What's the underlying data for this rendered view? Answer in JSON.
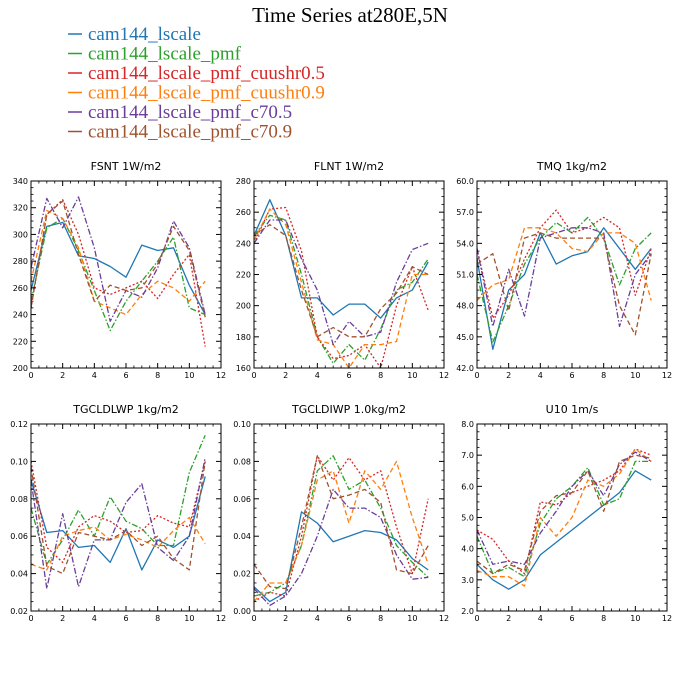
{
  "chart_data": {
    "title": "Time Series at280E,5N",
    "type": "line",
    "series_meta": [
      {
        "name": "cam144_lscale",
        "color": "#1f77b4",
        "dash": "solid"
      },
      {
        "name": "cam144_lscale_pmf",
        "color": "#2ca02c",
        "dash": "dashdot"
      },
      {
        "name": "cam144_lscale_pmf_cuushr0.5",
        "color": "#d62728",
        "dash": "dotted"
      },
      {
        "name": "cam144_lscale_pmf_cuushr0.9",
        "color": "#ff7f0e",
        "dash": "dashed"
      },
      {
        "name": "cam144_lscale_pmf_c70.5",
        "color": "#6a3d9a",
        "dash": "dashdot"
      },
      {
        "name": "cam144_lscale_pmf_c70.9",
        "color": "#a0522d",
        "dash": "dashed"
      }
    ],
    "panels": [
      {
        "title": "FSNT   1W/m2",
        "xlim": [
          0,
          12
        ],
        "xticks": [
          0,
          2,
          4,
          6,
          8,
          10,
          12
        ],
        "ylim": [
          200,
          340
        ],
        "yticks": [
          200,
          220,
          240,
          260,
          280,
          300,
          320,
          340
        ],
        "ytick_labels": [
          "200",
          "220",
          "240",
          "260",
          "280",
          "300",
          "320",
          "340"
        ],
        "series": [
          [
            258,
            306,
            309,
            284,
            282,
            276,
            268,
            292,
            288,
            290,
            262,
            240
          ],
          [
            250,
            305,
            312,
            288,
            258,
            228,
            250,
            265,
            280,
            298,
            245,
            240
          ],
          [
            245,
            315,
            326,
            300,
            260,
            255,
            260,
            265,
            252,
            270,
            285,
            216
          ],
          [
            265,
            318,
            312,
            290,
            250,
            245,
            240,
            255,
            265,
            260,
            250,
            265
          ],
          [
            275,
            327,
            305,
            328,
            290,
            235,
            258,
            253,
            275,
            310,
            290,
            240
          ],
          [
            245,
            315,
            325,
            285,
            250,
            262,
            258,
            260,
            278,
            306,
            288,
            238
          ]
        ]
      },
      {
        "title": "FLNT   1W/m2",
        "xlim": [
          0,
          12
        ],
        "xticks": [
          0,
          2,
          4,
          6,
          8,
          10,
          12
        ],
        "ylim": [
          160,
          280
        ],
        "yticks": [
          160,
          180,
          200,
          220,
          240,
          260,
          280
        ],
        "ytick_labels": [
          "160",
          "180",
          "200",
          "220",
          "240",
          "260",
          "280"
        ],
        "series": [
          [
            245,
            268,
            245,
            205,
            205,
            194,
            201,
            201,
            192,
            205,
            210,
            228
          ],
          [
            245,
            258,
            255,
            220,
            180,
            163,
            175,
            165,
            185,
            210,
            215,
            230
          ],
          [
            240,
            262,
            263,
            235,
            180,
            166,
            168,
            175,
            160,
            200,
            225,
            197
          ],
          [
            242,
            262,
            252,
            215,
            178,
            175,
            160,
            175,
            175,
            177,
            220,
            220
          ],
          [
            240,
            255,
            255,
            230,
            210,
            175,
            190,
            180,
            183,
            215,
            236,
            240
          ],
          [
            245,
            252,
            245,
            210,
            180,
            186,
            180,
            180,
            198,
            208,
            225,
            220
          ]
        ]
      },
      {
        "title": "TMQ   1kg/m2",
        "xlim": [
          0,
          12
        ],
        "xticks": [
          0,
          2,
          4,
          6,
          8,
          10,
          12
        ],
        "ylim": [
          42,
          60
        ],
        "yticks": [
          42,
          45,
          48,
          51,
          54,
          57,
          60
        ],
        "ytick_labels": [
          "42.0",
          "45.0",
          "48.0",
          "51.0",
          "54.0",
          "57.0",
          "60.0"
        ],
        "series": [
          [
            52.5,
            43.8,
            49.5,
            51.0,
            55.0,
            52.0,
            52.8,
            53.2,
            55.5,
            53.5,
            51.5,
            53.5
          ],
          [
            51.0,
            44.5,
            48.0,
            52.0,
            54.5,
            56.0,
            55.0,
            56.5,
            54.5,
            50.0,
            53.5,
            55.0
          ],
          [
            53.5,
            46.8,
            49.0,
            52.5,
            55.5,
            57.2,
            55.0,
            55.5,
            56.5,
            55.5,
            49.0,
            53.5
          ],
          [
            48.5,
            50.0,
            50.5,
            55.5,
            55.5,
            55.0,
            53.5,
            53.2,
            55.0,
            55.0,
            54.0,
            48.5
          ],
          [
            53.5,
            46.0,
            51.5,
            47.0,
            54.5,
            55.0,
            55.5,
            55.5,
            55.0,
            46.0,
            51.0,
            53.0
          ],
          [
            52.0,
            53.0,
            47.5,
            54.5,
            55.0,
            54.5,
            54.5,
            54.5,
            54.5,
            48.0,
            45.2,
            53.0
          ]
        ]
      },
      {
        "title": "TGCLDLWP   1kg/m2",
        "xlim": [
          0,
          12
        ],
        "xticks": [
          0,
          2,
          4,
          6,
          8,
          10,
          12
        ],
        "ylim": [
          0.02,
          0.12
        ],
        "yticks": [
          0.02,
          0.04,
          0.06,
          0.08,
          0.1,
          0.12
        ],
        "ytick_labels": [
          "0.02",
          "0.04",
          "0.06",
          "0.08",
          "0.10",
          "0.12"
        ],
        "series": [
          [
            0.09,
            0.062,
            0.063,
            0.054,
            0.055,
            0.046,
            0.064,
            0.042,
            0.058,
            0.054,
            0.06,
            0.092
          ],
          [
            0.075,
            0.045,
            0.058,
            0.074,
            0.06,
            0.081,
            0.068,
            0.064,
            0.055,
            0.055,
            0.094,
            0.114
          ],
          [
            0.1,
            0.054,
            0.046,
            0.065,
            0.071,
            0.068,
            0.062,
            0.063,
            0.071,
            0.067,
            0.065,
            0.1
          ],
          [
            0.045,
            0.042,
            0.06,
            0.063,
            0.065,
            0.058,
            0.061,
            0.058,
            0.054,
            0.063,
            0.07,
            0.056
          ],
          [
            0.09,
            0.032,
            0.072,
            0.033,
            0.058,
            0.058,
            0.078,
            0.088,
            0.054,
            0.047,
            0.06,
            0.102
          ],
          [
            0.097,
            0.044,
            0.04,
            0.062,
            0.06,
            0.058,
            0.063,
            0.055,
            0.06,
            0.048,
            0.042,
            0.1
          ]
        ]
      },
      {
        "title": "TGCLDIWP   1.0kg/m2",
        "xlim": [
          0,
          12
        ],
        "xticks": [
          0,
          2,
          4,
          6,
          8,
          10,
          12
        ],
        "ylim": [
          0,
          0.1
        ],
        "yticks": [
          0,
          0.02,
          0.04,
          0.06,
          0.08,
          0.1
        ],
        "ytick_labels": [
          "0.00",
          "0.02",
          "0.04",
          "0.06",
          "0.08",
          "0.10"
        ],
        "series": [
          [
            0.013,
            0.005,
            0.01,
            0.053,
            0.047,
            0.037,
            0.04,
            0.043,
            0.042,
            0.038,
            0.028,
            0.022
          ],
          [
            0.008,
            0.01,
            0.015,
            0.035,
            0.075,
            0.083,
            0.065,
            0.07,
            0.055,
            0.035,
            0.026,
            0.018
          ],
          [
            0.005,
            0.01,
            0.008,
            0.04,
            0.083,
            0.07,
            0.082,
            0.07,
            0.075,
            0.045,
            0.02,
            0.06
          ],
          [
            0.005,
            0.015,
            0.015,
            0.035,
            0.07,
            0.075,
            0.047,
            0.075,
            0.065,
            0.08,
            0.05,
            0.025
          ],
          [
            0.012,
            0.003,
            0.008,
            0.02,
            0.04,
            0.065,
            0.055,
            0.055,
            0.05,
            0.03,
            0.017,
            0.018
          ],
          [
            0.025,
            0.013,
            0.012,
            0.045,
            0.083,
            0.06,
            0.062,
            0.065,
            0.058,
            0.022,
            0.02,
            0.035
          ]
        ]
      },
      {
        "title": "U10   1m/s",
        "xlim": [
          0,
          12
        ],
        "xticks": [
          0,
          2,
          4,
          6,
          8,
          10,
          12
        ],
        "ylim": [
          2,
          8
        ],
        "yticks": [
          2,
          3,
          4,
          5,
          6,
          7,
          8
        ],
        "ytick_labels": [
          "2.0",
          "3.0",
          "4.0",
          "5.0",
          "6.0",
          "7.0",
          "8.0"
        ],
        "series": [
          [
            3.5,
            3.0,
            2.7,
            3.0,
            3.8,
            4.2,
            4.6,
            5.0,
            5.4,
            5.8,
            6.5,
            6.2
          ],
          [
            4.4,
            3.2,
            3.4,
            3.1,
            4.8,
            5.6,
            6.0,
            6.6,
            5.4,
            5.6,
            6.8,
            6.8
          ],
          [
            4.6,
            4.3,
            3.6,
            3.2,
            5.5,
            5.4,
            5.8,
            6.0,
            6.2,
            6.5,
            7.2,
            7.0
          ],
          [
            3.3,
            3.1,
            3.1,
            2.8,
            5.0,
            4.4,
            5.0,
            6.2,
            6.0,
            6.4,
            7.2,
            6.8
          ],
          [
            4.6,
            3.5,
            3.6,
            3.5,
            4.5,
            5.2,
            6.0,
            6.5,
            5.7,
            6.7,
            7.1,
            6.8
          ],
          [
            3.6,
            3.2,
            3.5,
            3.3,
            5.2,
            5.7,
            5.8,
            6.5,
            5.2,
            6.8,
            7.0,
            6.9
          ]
        ]
      }
    ]
  }
}
